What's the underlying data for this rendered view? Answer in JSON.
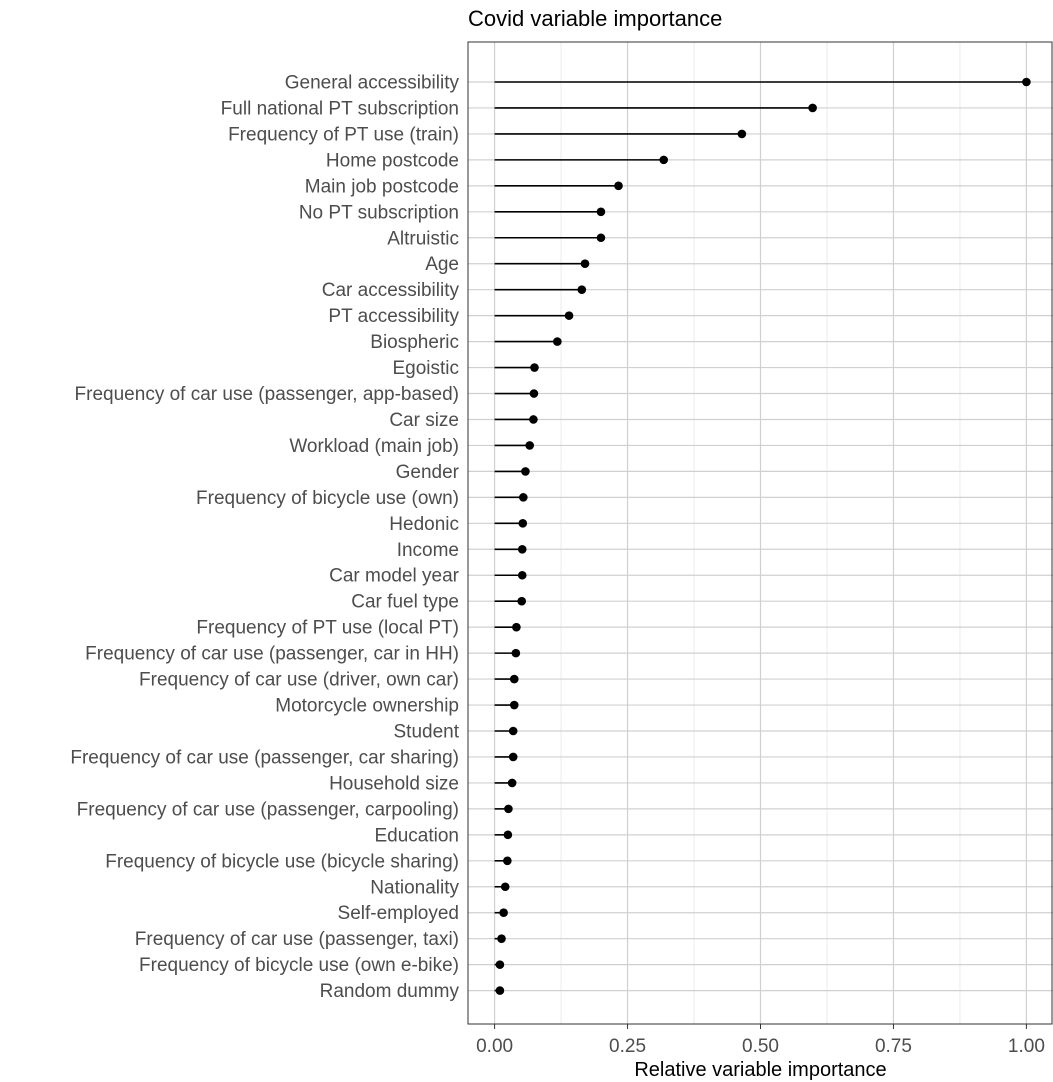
{
  "chart_data": {
    "type": "lollipop",
    "title": "Covid variable importance",
    "xlabel": "Relative variable importance",
    "ylabel": "",
    "xlim": [
      -0.05,
      1.05
    ],
    "x_ticks": [
      0.0,
      0.25,
      0.5,
      0.75,
      1.0
    ],
    "x_tick_labels": [
      "0.00",
      "0.25",
      "0.50",
      "0.75",
      "1.00"
    ],
    "grid": true,
    "colors": {
      "point": "#000000",
      "segment": "#000000",
      "grid_major": "#d0d0d0",
      "grid_minor": "#ebebeb",
      "panel_border": "#333333",
      "tick_label": "#4d4d4d"
    },
    "categories": [
      "General accessibility",
      "Full national PT subscription",
      "Frequency of PT use (train)",
      "Home postcode",
      "Main job postcode",
      "No PT subscription",
      "Altruistic",
      "Age",
      "Car accessibility",
      "PT accessibility",
      "Biospheric",
      "Egoistic",
      "Frequency of car use (passenger, app-based)",
      "Car size",
      "Workload (main job)",
      "Gender",
      "Frequency of bicycle use (own)",
      "Hedonic",
      "Income",
      "Car model year",
      "Car fuel type",
      "Frequency of PT use (local PT)",
      "Frequency of car use (passenger, car in HH)",
      "Frequency of car use (driver, own car)",
      "Motorcycle ownership",
      "Student",
      "Frequency of car use (passenger, car sharing)",
      "Household size",
      "Frequency of car use (passenger, carpooling)",
      "Education",
      "Frequency of bicycle use (bicycle sharing)",
      "Nationality",
      "Self-employed",
      "Frequency of car use (passenger, taxi)",
      "Frequency of bicycle use (own e-bike)",
      "Random dummy"
    ],
    "values": [
      1.0,
      0.598,
      0.465,
      0.318,
      0.233,
      0.2,
      0.2,
      0.17,
      0.164,
      0.14,
      0.118,
      0.075,
      0.074,
      0.073,
      0.066,
      0.058,
      0.054,
      0.053,
      0.052,
      0.052,
      0.051,
      0.041,
      0.04,
      0.037,
      0.037,
      0.035,
      0.035,
      0.033,
      0.026,
      0.025,
      0.024,
      0.02,
      0.017,
      0.013,
      0.01,
      0.01
    ]
  }
}
